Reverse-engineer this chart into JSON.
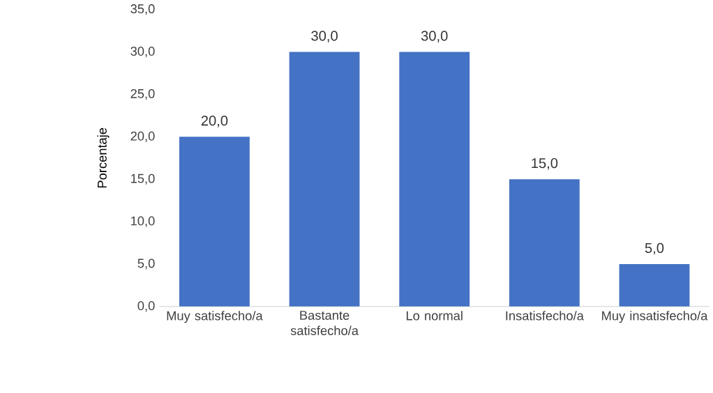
{
  "chart_data": {
    "type": "bar",
    "ylabel": "Porcentaje",
    "categories": [
      "Muy satisfecho/a",
      "Bastante satisfecho/a",
      "Lo normal",
      "Insatisfecho/a",
      "Muy insatisfecho/a"
    ],
    "values": [
      20,
      30,
      30,
      15,
      5
    ],
    "value_labels": [
      "20,0",
      "30,0",
      "30,0",
      "15,0",
      "5,0"
    ],
    "color": "#4472c4",
    "ylim": [
      0,
      35
    ],
    "yticks": [
      {
        "value": 0,
        "label": "0,0"
      },
      {
        "value": 5,
        "label": "5,0"
      },
      {
        "value": 10,
        "label": "10,0"
      },
      {
        "value": 15,
        "label": "15,0"
      },
      {
        "value": 20,
        "label": "20,0"
      },
      {
        "value": 25,
        "label": "25,0"
      },
      {
        "value": 30,
        "label": "30,0"
      },
      {
        "value": 35,
        "label": "35,0"
      }
    ],
    "grid": false
  }
}
